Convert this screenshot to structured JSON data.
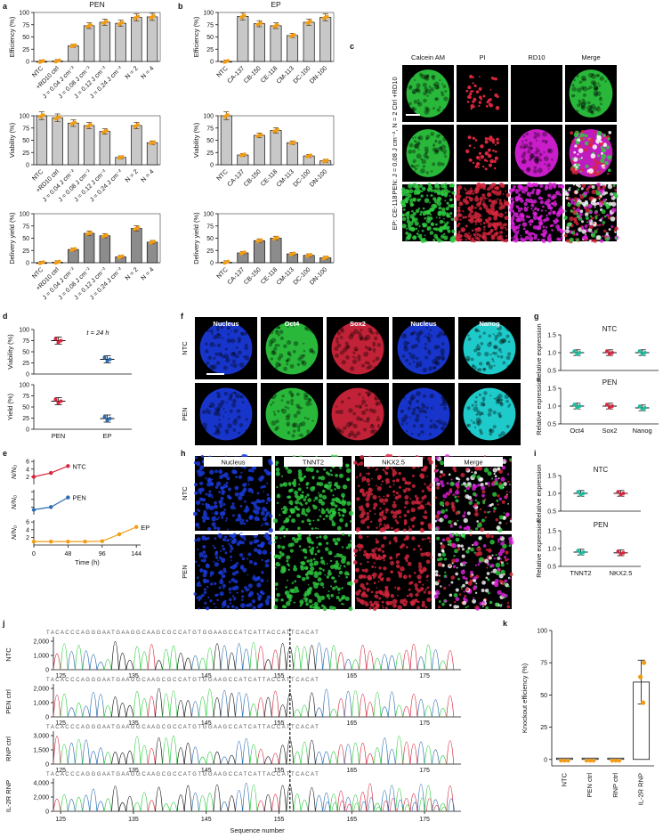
{
  "panel_letters": [
    "a",
    "b",
    "c",
    "d",
    "e",
    "f",
    "g",
    "h",
    "i",
    "j",
    "k"
  ],
  "colors": {
    "bar_fill": "#c8c8c8",
    "bar_fill_dark": "#8c8c8c",
    "point": "#f39c12",
    "red": "#d7263d",
    "blue": "#2b6cb0",
    "orange": "#f39c12",
    "teal": "#1abc9c",
    "green": "#2ecc40",
    "magenta": "#e020e0"
  },
  "panel_a": {
    "title": "PEN",
    "categories": [
      "NTC",
      "+RD10 ctrl",
      "J = 0.04 J cm⁻²",
      "J = 0.08 J cm⁻²",
      "J = 0.12 J cm⁻²",
      "J = 0.24 J cm⁻²",
      "N = 2",
      "N = 4"
    ],
    "ylabels": [
      "Efficiency (%)",
      "Viability (%)",
      "Delivery yield (%)"
    ],
    "yticks": [
      "0",
      "25",
      "50",
      "75",
      "100"
    ]
  },
  "panel_b": {
    "title": "EP",
    "categories": [
      "NTC",
      "CA-137",
      "CB-150",
      "CE-118",
      "CM-113",
      "DC-100",
      "DN-100"
    ],
    "ylabels": [
      "Efficiency (%)",
      "Viability (%)",
      "Delivery yield (%)"
    ],
    "yticks": [
      "0",
      "25",
      "50",
      "75",
      "100"
    ]
  },
  "chart_data": [
    {
      "type": "bar",
      "panel": "a-top",
      "title": "PEN",
      "ylabel": "Efficiency (%)",
      "ylim": [
        0,
        100
      ],
      "categories": [
        "NTC",
        "+RD10 ctrl",
        "J = 0.04 J cm⁻²",
        "J = 0.08 J cm⁻²",
        "J = 0.12 J cm⁻²",
        "J = 0.24 J cm⁻²",
        "N = 2",
        "N = 4"
      ],
      "values": [
        0,
        1,
        32,
        73,
        80,
        78,
        90,
        91
      ]
    },
    {
      "type": "bar",
      "panel": "a-mid",
      "ylabel": "Viability (%)",
      "ylim": [
        0,
        100
      ],
      "categories": [
        "NTC",
        "+RD10 ctrl",
        "J = 0.04 J cm⁻²",
        "J = 0.08 J cm⁻²",
        "J = 0.12 J cm⁻²",
        "J = 0.24 J cm⁻²",
        "N = 2",
        "N = 4"
      ],
      "values": [
        100,
        96,
        85,
        80,
        68,
        15,
        80,
        45
      ]
    },
    {
      "type": "bar",
      "panel": "a-bot",
      "ylabel": "Delivery yield (%)",
      "ylim": [
        0,
        100
      ],
      "categories": [
        "NTC",
        "+RD10 ctrl",
        "J = 0.04 J cm⁻²",
        "J = 0.08 J cm⁻²",
        "J = 0.12 J cm⁻²",
        "J = 0.24 J cm⁻²",
        "N = 2",
        "N = 4"
      ],
      "values": [
        0,
        1,
        27,
        60,
        55,
        12,
        70,
        42
      ]
    },
    {
      "type": "bar",
      "panel": "b-top",
      "title": "EP",
      "ylabel": "Efficiency (%)",
      "ylim": [
        0,
        100
      ],
      "categories": [
        "NTC",
        "CA-137",
        "CB-150",
        "CE-118",
        "CM-113",
        "DC-100",
        "DN-100"
      ],
      "values": [
        0,
        92,
        77,
        73,
        53,
        80,
        90
      ]
    },
    {
      "type": "bar",
      "panel": "b-mid",
      "ylabel": "Viability (%)",
      "ylim": [
        0,
        100
      ],
      "categories": [
        "NTC",
        "CA-137",
        "CB-150",
        "CE-118",
        "CM-113",
        "DC-100",
        "DN-100"
      ],
      "values": [
        100,
        20,
        60,
        70,
        45,
        18,
        8
      ]
    },
    {
      "type": "bar",
      "panel": "b-bot",
      "ylabel": "Delivery yield (%)",
      "ylim": [
        0,
        100
      ],
      "categories": [
        "NTC",
        "CA-137",
        "CB-150",
        "CE-118",
        "CM-113",
        "DC-100",
        "DN-100"
      ],
      "values": [
        1,
        20,
        45,
        50,
        18,
        15,
        10
      ]
    },
    {
      "type": "scatter",
      "panel": "d-top",
      "ylabel": "Viability (%)",
      "ylim": [
        0,
        100
      ],
      "categories": [
        "PEN",
        "EP"
      ],
      "values": [
        75,
        33
      ]
    },
    {
      "type": "scatter",
      "panel": "d-bot",
      "ylabel": "Yield (%)",
      "ylim": [
        0,
        100
      ],
      "categories": [
        "PEN",
        "EP"
      ],
      "values": [
        63,
        24
      ]
    },
    {
      "type": "line",
      "panel": "e",
      "xlabel": "Time (h)",
      "ylabel": "N/N₀",
      "series": [
        {
          "name": "NTC",
          "x": [
            0,
            24,
            48
          ],
          "values": [
            2.0,
            3.0,
            4.8
          ]
        },
        {
          "name": "PEN",
          "x": [
            0,
            24,
            48
          ],
          "values": [
            1.3,
            2.0,
            4.5
          ]
        },
        {
          "name": "EP",
          "x": [
            0,
            24,
            48,
            72,
            96,
            120,
            144
          ],
          "values": [
            0.9,
            0.9,
            0.9,
            0.9,
            1.0,
            2.8,
            4.7
          ]
        }
      ]
    },
    {
      "type": "scatter",
      "panel": "g-top",
      "title": "NTC",
      "ylabel": "Relative expression",
      "ylim": [
        0.5,
        1.5
      ],
      "categories": [
        "Oct4",
        "Sox2",
        "Nanog"
      ],
      "values": [
        1.0,
        1.0,
        1.0
      ]
    },
    {
      "type": "scatter",
      "panel": "g-bot",
      "title": "PEN",
      "ylabel": "Relative expression",
      "ylim": [
        0.5,
        1.5
      ],
      "categories": [
        "Oct4",
        "Sox2",
        "Nanog"
      ],
      "values": [
        1.0,
        1.0,
        0.95
      ]
    },
    {
      "type": "scatter",
      "panel": "i-top",
      "title": "NTC",
      "ylabel": "Relative expression",
      "ylim": [
        0.5,
        1.5
      ],
      "categories": [
        "TNNT2",
        "NKX2.5"
      ],
      "values": [
        1.0,
        1.0
      ]
    },
    {
      "type": "scatter",
      "panel": "i-bot",
      "title": "PEN",
      "ylabel": "Relative expression",
      "ylim": [
        0.5,
        1.5
      ],
      "categories": [
        "TNNT2",
        "NKX2.5"
      ],
      "values": [
        0.9,
        0.88
      ]
    },
    {
      "type": "bar",
      "panel": "k",
      "ylabel": "Knockout efficiency (%)",
      "ylim": [
        0,
        100
      ],
      "categories": [
        "NTC",
        "PEN ctrl",
        "RNP ctrl",
        "IL-2R RNP"
      ],
      "values": [
        -1,
        -1,
        -1,
        60
      ]
    }
  ],
  "panel_c": {
    "headers": [
      "Calcein AM",
      "PI",
      "RD10",
      "Merge"
    ],
    "rows": [
      "Ctrl +RD10",
      "PEN: J = 0.08 J cm⁻², N = 2",
      "EP: CE-118"
    ]
  },
  "panel_d": {
    "annotation": "t = 24 h",
    "ylabels": [
      "Viability (%)",
      "Yield (%)"
    ],
    "xcats": [
      "PEN",
      "EP"
    ],
    "yticks": [
      "0",
      "25",
      "50",
      "75",
      "100"
    ]
  },
  "panel_e": {
    "xlabel": "Time (h)",
    "ylabel": "N/N₀",
    "xticks": [
      "0",
      "48",
      "96",
      "144"
    ],
    "labels": [
      "NTC",
      "PEN",
      "EP"
    ],
    "ticks_top": [
      "2",
      "4",
      "6"
    ],
    "ticks_bot": [
      "2",
      "4",
      "6"
    ]
  },
  "panel_f": {
    "headers": [
      "Nucleus",
      "Oct4",
      "Sox2",
      "Nucleus",
      "Nanog"
    ],
    "rows": [
      "NTC",
      "PEN"
    ]
  },
  "panel_g": {
    "titles": [
      "NTC",
      "PEN"
    ],
    "ylabel": "Relative expression",
    "yticks": [
      "0.5",
      "1.0",
      "1.5"
    ],
    "xcats": [
      "Oct4",
      "Sox2",
      "Nanog"
    ]
  },
  "panel_h": {
    "headers": [
      "Nucleus",
      "TNNT2",
      "NKX2.5",
      "Merge"
    ],
    "rows": [
      "NTC",
      "PEN"
    ]
  },
  "panel_i": {
    "titles": [
      "NTC",
      "PEN"
    ],
    "ylabel": "Relative expression",
    "yticks": [
      "0.5",
      "1.0",
      "1.5"
    ],
    "xcats": [
      "TNNT2",
      "NKX2.5"
    ]
  },
  "panel_j": {
    "sequence": "TACACCCAGGGAATGAAGGCAAGCGCCATGTGGAAGCCATCATTACCATTCACAT",
    "rows": [
      "NTC",
      "PEN ctrl",
      "RNP ctrl",
      "IL-2R RNP"
    ],
    "yticks_rows": [
      [
        "0",
        "1,000",
        "2,000"
      ],
      [
        "0",
        "1,000",
        "2,000"
      ],
      [
        "0",
        "1,500",
        "3,000"
      ],
      [
        "0",
        "2,000",
        "4,000"
      ]
    ],
    "xticks": [
      "125",
      "135",
      "145",
      "155",
      "165",
      "175"
    ],
    "xlabel": "Sequence number"
  },
  "panel_k": {
    "ylabel": "Knockout efficiency (%)",
    "yticks": [
      "0",
      "25",
      "50",
      "75",
      "100"
    ],
    "xcats": [
      "NTC",
      "PEN ctrl",
      "RNP ctrl",
      "IL-2R RNP"
    ]
  }
}
